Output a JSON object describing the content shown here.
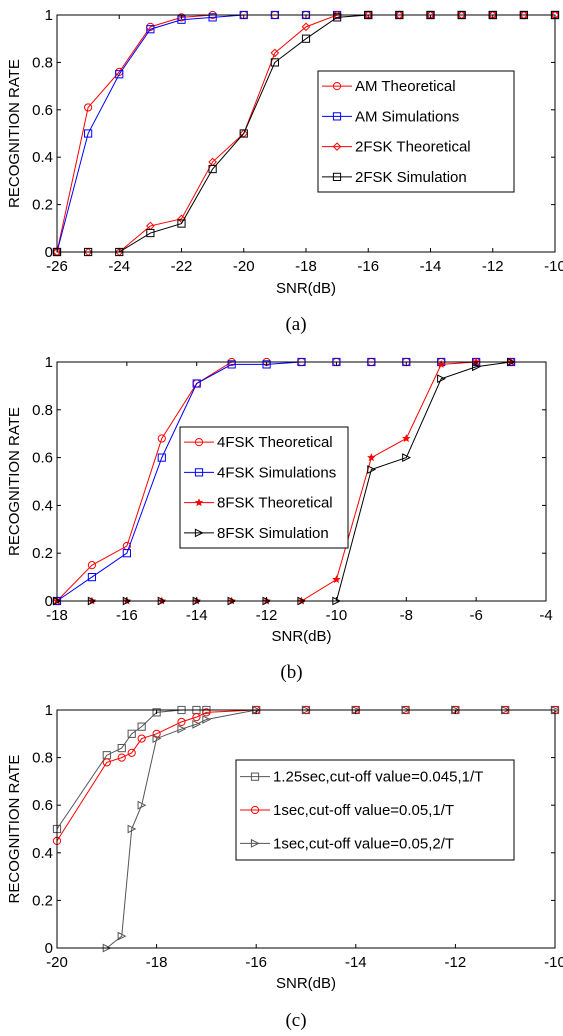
{
  "chart_data": [
    {
      "type": "line",
      "xlabel": "SNR(dB)",
      "ylabel": "RECOGNITION RATE",
      "caption": "(a)",
      "xlim": [
        -26,
        -10
      ],
      "ylim": [
        0,
        1
      ],
      "xticks": [
        "-26",
        "-24",
        "-22",
        "-20",
        "-18",
        "-16",
        "-14",
        "-12",
        "-10"
      ],
      "yticks": [
        "0",
        "0.2",
        "0.4",
        "0.6",
        "0.8",
        "1"
      ],
      "legend_position": "right",
      "series": [
        {
          "name": "AM Theoretical",
          "color": "#ff0000",
          "marker": "circle",
          "x": [
            -26,
            -25,
            -24,
            -23,
            -22,
            -21,
            -20,
            -19,
            -18,
            -17,
            -16,
            -15,
            -14,
            -13,
            -12,
            -11,
            -10
          ],
          "y": [
            0,
            0.61,
            0.76,
            0.95,
            0.99,
            1,
            1,
            1,
            1,
            1,
            1,
            1,
            1,
            1,
            1,
            1,
            1
          ]
        },
        {
          "name": "AM Simulations",
          "color": "#0000ff",
          "marker": "square",
          "x": [
            -26,
            -25,
            -24,
            -23,
            -22,
            -21,
            -20,
            -19,
            -18,
            -17,
            -16,
            -15,
            -14,
            -13,
            -12,
            -11,
            -10
          ],
          "y": [
            0,
            0.5,
            0.75,
            0.94,
            0.98,
            0.99,
            1,
            1,
            1,
            1,
            1,
            1,
            1,
            1,
            1,
            1,
            1
          ]
        },
        {
          "name": "2FSK Theoretical",
          "color": "#ff0000",
          "marker": "diamond",
          "x": [
            -26,
            -25,
            -24,
            -23,
            -22,
            -21,
            -20,
            -19,
            -18,
            -17,
            -16,
            -15,
            -14,
            -13,
            -12,
            -11,
            -10
          ],
          "y": [
            0,
            0,
            0,
            0.11,
            0.14,
            0.38,
            0.5,
            0.84,
            0.95,
            1,
            1,
            1,
            1,
            1,
            1,
            1,
            1
          ]
        },
        {
          "name": "2FSK Simulation",
          "color": "#000000",
          "marker": "square",
          "x": [
            -26,
            -25,
            -24,
            -23,
            -22,
            -21,
            -20,
            -19,
            -18,
            -17,
            -16,
            -15,
            -14,
            -13,
            -12,
            -11,
            -10
          ],
          "y": [
            0,
            0,
            0,
            0.08,
            0.12,
            0.35,
            0.5,
            0.8,
            0.9,
            0.99,
            1,
            1,
            1,
            1,
            1,
            1,
            1
          ]
        }
      ]
    },
    {
      "type": "line",
      "xlabel": "SNR(dB)",
      "ylabel": "RECOGNITION RATE",
      "caption": "(b)",
      "xlim": [
        -18,
        -4
      ],
      "ylim": [
        0,
        1
      ],
      "xticks": [
        "-18",
        "-16",
        "-14",
        "-12",
        "-10",
        "-8",
        "-6",
        "-4"
      ],
      "yticks": [
        "0",
        "0.2",
        "0.4",
        "0.6",
        "0.8",
        "1"
      ],
      "legend_position": "center-left",
      "series": [
        {
          "name": "4FSK Theoretical",
          "color": "#ff0000",
          "marker": "circle",
          "x": [
            -18,
            -17,
            -16,
            -15,
            -14,
            -13,
            -12,
            -11,
            -10,
            -9,
            -8,
            -7,
            -6,
            -5
          ],
          "y": [
            0,
            0.15,
            0.23,
            0.68,
            0.91,
            1,
            1,
            1,
            1,
            1,
            1,
            1,
            1,
            1
          ]
        },
        {
          "name": "4FSK Simulations",
          "color": "#0000ff",
          "marker": "square",
          "x": [
            -18,
            -17,
            -16,
            -15,
            -14,
            -13,
            -12,
            -11,
            -10,
            -9,
            -8,
            -7,
            -6,
            -5
          ],
          "y": [
            0,
            0.1,
            0.2,
            0.6,
            0.91,
            0.99,
            0.99,
            1,
            1,
            1,
            1,
            1,
            1,
            1
          ]
        },
        {
          "name": "8FSK Theoretical",
          "color": "#ff0000",
          "marker": "star",
          "x": [
            -18,
            -17,
            -16,
            -15,
            -14,
            -13,
            -12,
            -11,
            -10,
            -9,
            -8,
            -7,
            -6,
            -5
          ],
          "y": [
            0,
            0,
            0,
            0,
            0,
            0,
            0,
            0,
            0.09,
            0.6,
            0.68,
            0.99,
            1,
            1
          ]
        },
        {
          "name": "8FSK Simulation",
          "color": "#000000",
          "marker": "triangle-right",
          "x": [
            -18,
            -17,
            -16,
            -15,
            -14,
            -13,
            -12,
            -11,
            -10,
            -9,
            -8,
            -7,
            -6,
            -5
          ],
          "y": [
            0,
            0,
            0,
            0,
            0,
            0,
            0,
            0,
            0,
            0.55,
            0.6,
            0.93,
            0.98,
            1
          ]
        }
      ]
    },
    {
      "type": "line",
      "xlabel": "SNR(dB)",
      "ylabel": "RECOGNITION RATE",
      "caption": "(c)",
      "xlim": [
        -20,
        -10
      ],
      "ylim": [
        0,
        1
      ],
      "xticks": [
        "-20",
        "-18",
        "-16",
        "-14",
        "-12",
        "-10"
      ],
      "yticks": [
        "0",
        "0.2",
        "0.4",
        "0.6",
        "0.8",
        "1"
      ],
      "legend_position": "right",
      "series": [
        {
          "name": "1.25sec,cut-off value=0.045,1/T",
          "color": "#555555",
          "marker": "square",
          "x": [
            -20,
            -19,
            -18.7,
            -18.5,
            -18.3,
            -18,
            -17.5,
            -17.2,
            -17,
            -16,
            -15,
            -14,
            -13,
            -12,
            -11,
            -10
          ],
          "y": [
            0.5,
            0.81,
            0.84,
            0.9,
            0.93,
            0.99,
            1,
            1,
            1,
            1,
            1,
            1,
            1,
            1,
            1,
            1
          ]
        },
        {
          "name": "1sec,cut-off value=0.05,1/T",
          "color": "#ff0000",
          "marker": "circle",
          "x": [
            -20,
            -19,
            -18.7,
            -18.5,
            -18.3,
            -18,
            -17.5,
            -17.2,
            -17,
            -16,
            -15,
            -14,
            -13,
            -12,
            -11,
            -10
          ],
          "y": [
            0.45,
            0.78,
            0.8,
            0.82,
            0.88,
            0.9,
            0.95,
            0.97,
            0.99,
            1,
            1,
            1,
            1,
            1,
            1,
            1
          ]
        },
        {
          "name": "1sec,cut-off value=0.05,2/T",
          "color": "#555555",
          "marker": "triangle-right",
          "x": [
            -19,
            -18.7,
            -18.5,
            -18.3,
            -18,
            -17.5,
            -17.2,
            -17,
            -16,
            -15,
            -14,
            -13,
            -12,
            -11,
            -10
          ],
          "y": [
            0,
            0.05,
            0.5,
            0.6,
            0.88,
            0.92,
            0.94,
            0.96,
            1,
            1,
            1,
            1,
            1,
            1,
            1
          ]
        }
      ]
    }
  ]
}
